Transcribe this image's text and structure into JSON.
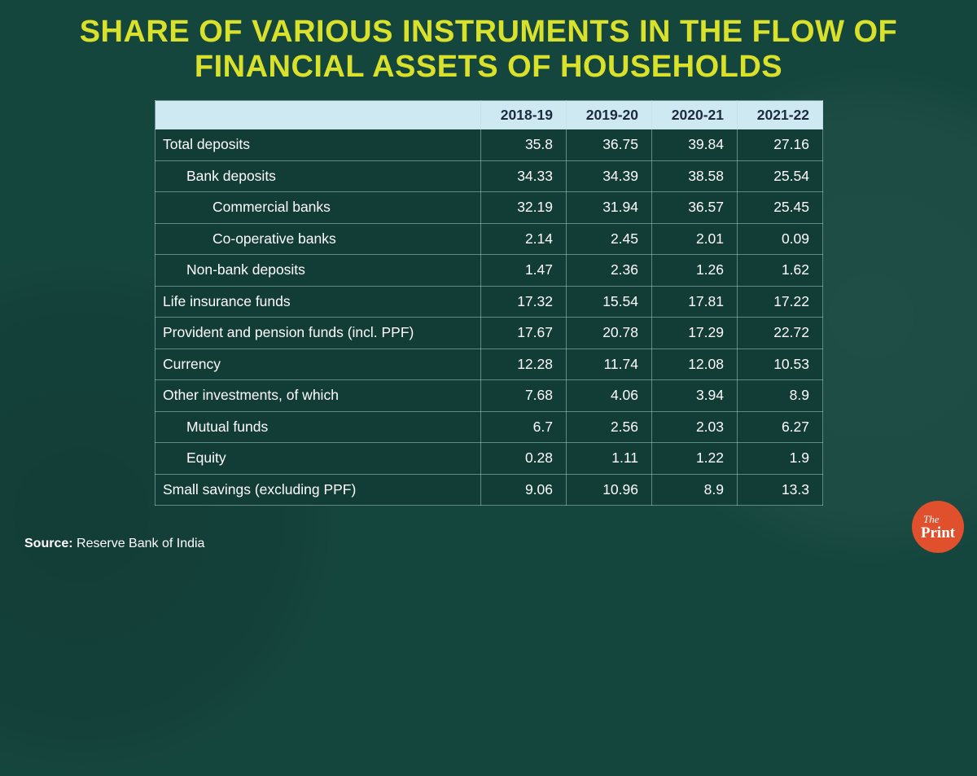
{
  "title": {
    "lines": [
      "SHARE OF VARIOUS INSTRUMENTS IN THE FLOW OF",
      "FINANCIAL ASSETS OF HOUSEHOLDS"
    ]
  },
  "chart_data": {
    "type": "table",
    "title": "Share of various instruments in the flow of financial assets of households",
    "columns": [
      "2018-19",
      "2019-20",
      "2020-21",
      "2021-22"
    ],
    "rows": [
      {
        "label": "Total deposits",
        "indent": 0,
        "values": [
          35.8,
          36.75,
          39.84,
          27.16
        ]
      },
      {
        "label": "Bank deposits",
        "indent": 1,
        "values": [
          34.33,
          34.39,
          38.58,
          25.54
        ]
      },
      {
        "label": "Commercial banks",
        "indent": 2,
        "values": [
          32.19,
          31.94,
          36.57,
          25.45
        ]
      },
      {
        "label": "Co-operative banks",
        "indent": 2,
        "values": [
          2.14,
          2.45,
          2.01,
          0.09
        ]
      },
      {
        "label": "Non-bank deposits",
        "indent": 1,
        "values": [
          1.47,
          2.36,
          1.26,
          1.62
        ]
      },
      {
        "label": "Life insurance funds",
        "indent": 0,
        "values": [
          17.32,
          15.54,
          17.81,
          17.22
        ]
      },
      {
        "label": "Provident and pension funds (incl. PPF)",
        "indent": 0,
        "values": [
          17.67,
          20.78,
          17.29,
          22.72
        ]
      },
      {
        "label": "Currency",
        "indent": 0,
        "values": [
          12.28,
          11.74,
          12.08,
          10.53
        ]
      },
      {
        "label": "Other investments, of which",
        "indent": 0,
        "values": [
          7.68,
          4.06,
          3.94,
          8.9
        ]
      },
      {
        "label": "Mutual funds",
        "indent": 1,
        "values": [
          6.7,
          2.56,
          2.03,
          6.27
        ]
      },
      {
        "label": "Equity",
        "indent": 1,
        "values": [
          0.28,
          1.11,
          1.22,
          1.9
        ]
      },
      {
        "label": "Small savings (excluding PPF)",
        "indent": 0,
        "values": [
          9.06,
          10.96,
          8.9,
          13.3
        ]
      }
    ],
    "source": "Reserve Bank of India",
    "layout": {
      "legend": "none",
      "grid": "on",
      "units": "percent share"
    }
  },
  "footer": {
    "source_label": "Source:",
    "source_text": " Reserve Bank of India"
  },
  "logo": {
    "the": "The",
    "print": "Print"
  },
  "colors": {
    "background": "#15463e",
    "title_text": "#d9e12b",
    "header_bg": "#cfe9f2",
    "header_text": "#1d2b3f",
    "cell_bg": "#123d36",
    "cell_border": "#b0d6d2",
    "body_text": "#ffffff",
    "logo_bg": "#e0502c"
  }
}
